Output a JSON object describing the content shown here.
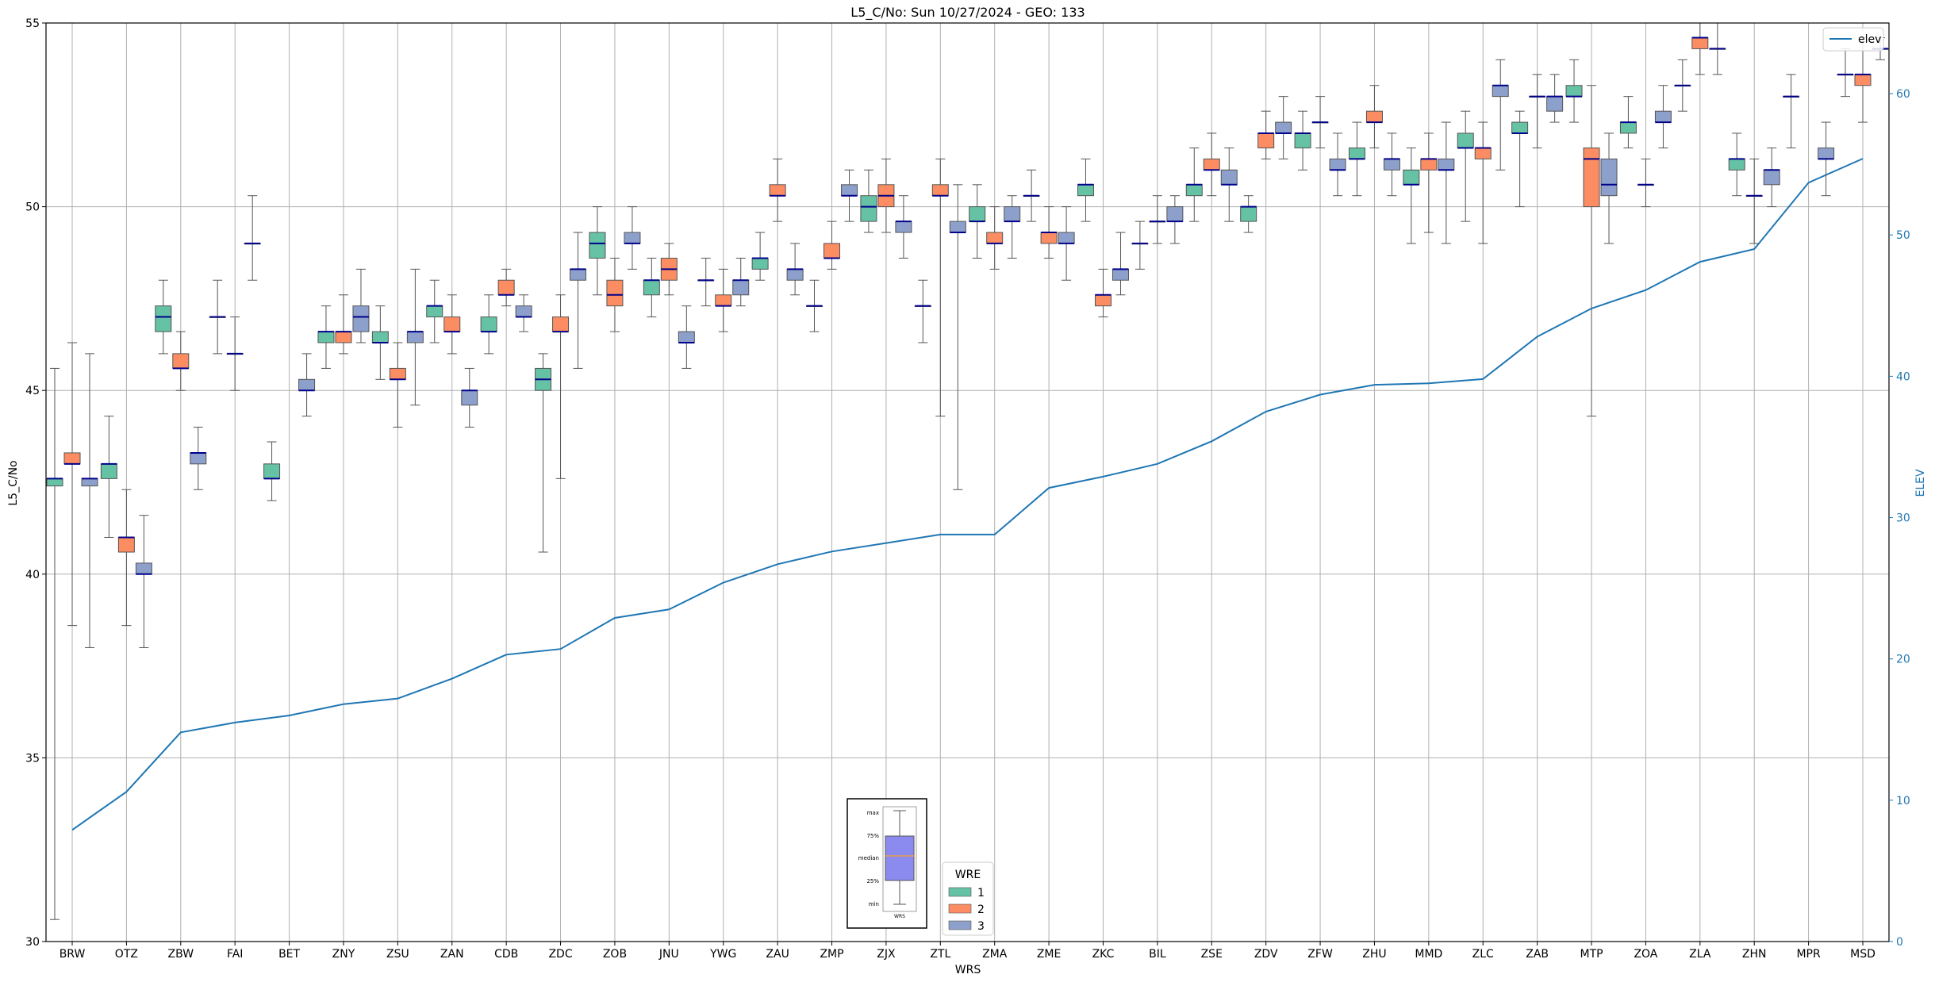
{
  "chart_data": {
    "type": "box",
    "title": "L5_C/No: Sun 10/27/2024 - GEO: 133",
    "xlabel": "WRS",
    "ylabel": "L5_C/No",
    "y2label": "ELEV",
    "ylim": [
      30,
      55
    ],
    "y2lim": [
      0,
      65
    ],
    "yticks": [
      30,
      35,
      40,
      45,
      50,
      55
    ],
    "y2ticks": [
      0,
      10,
      20,
      30,
      40,
      50,
      60
    ],
    "grid": true,
    "categories": [
      "BRW",
      "OTZ",
      "ZBW",
      "FAI",
      "BET",
      "ZNY",
      "ZSU",
      "ZAN",
      "CDB",
      "ZDC",
      "ZOB",
      "JNU",
      "YWG",
      "ZAU",
      "ZMP",
      "ZJX",
      "ZTL",
      "ZMA",
      "ZME",
      "ZKC",
      "BIL",
      "ZSE",
      "ZDV",
      "ZFW",
      "ZHU",
      "MMD",
      "ZLC",
      "ZAB",
      "MTP",
      "ZOA",
      "ZLA",
      "ZHN",
      "MPR",
      "MSD"
    ],
    "colors": {
      "1": "#66c2a5",
      "2": "#fc8d62",
      "3": "#8da0cb",
      "median": "#00008b",
      "elev": "#1f77b4",
      "whisker": "#555555"
    },
    "box_legend": {
      "title": "WRE",
      "entries": [
        "1",
        "2",
        "3"
      ],
      "placement": "bottom-center"
    },
    "line_legend": {
      "entries": [
        "elev"
      ],
      "placement": "top-right"
    },
    "key_box": {
      "labels": [
        "max",
        "75%",
        "median",
        "25%",
        "min"
      ],
      "caption": "WRS"
    },
    "boxes": [
      {
        "cat": "BRW",
        "wre": 1,
        "min": 30.6,
        "q1": 42.4,
        "median": 42.6,
        "q3": 42.6,
        "max": 45.6
      },
      {
        "cat": "BRW",
        "wre": 2,
        "min": 38.6,
        "q1": 43.0,
        "median": 43.0,
        "q3": 43.3,
        "max": 46.3
      },
      {
        "cat": "BRW",
        "wre": 3,
        "min": 38.0,
        "q1": 42.4,
        "median": 42.6,
        "q3": 42.6,
        "max": 46.0
      },
      {
        "cat": "OTZ",
        "wre": 1,
        "min": 41.0,
        "q1": 42.6,
        "median": 43.0,
        "q3": 43.0,
        "max": 44.3
      },
      {
        "cat": "OTZ",
        "wre": 2,
        "min": 38.6,
        "q1": 40.6,
        "median": 41.0,
        "q3": 41.0,
        "max": 42.3
      },
      {
        "cat": "OTZ",
        "wre": 3,
        "min": 38.0,
        "q1": 40.0,
        "median": 40.0,
        "q3": 40.3,
        "max": 41.6
      },
      {
        "cat": "ZBW",
        "wre": 1,
        "min": 46.0,
        "q1": 46.6,
        "median": 47.0,
        "q3": 47.3,
        "max": 48.0
      },
      {
        "cat": "ZBW",
        "wre": 2,
        "min": 45.0,
        "q1": 45.6,
        "median": 45.6,
        "q3": 46.0,
        "max": 46.6
      },
      {
        "cat": "ZBW",
        "wre": 3,
        "min": 42.3,
        "q1": 43.0,
        "median": 43.3,
        "q3": 43.3,
        "max": 44.0
      },
      {
        "cat": "FAI",
        "wre": 1,
        "min": 46.0,
        "q1": 47.0,
        "median": 47.0,
        "q3": 47.0,
        "max": 48.0
      },
      {
        "cat": "FAI",
        "wre": 2,
        "min": 45.0,
        "q1": 46.0,
        "median": 46.0,
        "q3": 46.0,
        "max": 47.0
      },
      {
        "cat": "FAI",
        "wre": 3,
        "min": 48.0,
        "q1": 49.0,
        "median": 49.0,
        "q3": 49.0,
        "max": 50.3
      },
      {
        "cat": "BET",
        "wre": 1,
        "min": 42.0,
        "q1": 42.6,
        "median": 42.6,
        "q3": 43.0,
        "max": 43.6
      },
      {
        "cat": "BET",
        "wre": 3,
        "min": 44.3,
        "q1": 45.0,
        "median": 45.0,
        "q3": 45.3,
        "max": 46.0
      },
      {
        "cat": "ZNY",
        "wre": 1,
        "min": 45.6,
        "q1": 46.3,
        "median": 46.6,
        "q3": 46.6,
        "max": 47.3
      },
      {
        "cat": "ZNY",
        "wre": 2,
        "min": 46.0,
        "q1": 46.3,
        "median": 46.6,
        "q3": 46.6,
        "max": 47.6
      },
      {
        "cat": "ZNY",
        "wre": 3,
        "min": 46.3,
        "q1": 46.6,
        "median": 47.0,
        "q3": 47.3,
        "max": 48.3
      },
      {
        "cat": "ZSU",
        "wre": 1,
        "min": 45.3,
        "q1": 46.3,
        "median": 46.3,
        "q3": 46.6,
        "max": 47.3
      },
      {
        "cat": "ZSU",
        "wre": 2,
        "min": 44.0,
        "q1": 45.3,
        "median": 45.3,
        "q3": 45.6,
        "max": 46.3
      },
      {
        "cat": "ZSU",
        "wre": 3,
        "min": 44.6,
        "q1": 46.3,
        "median": 46.6,
        "q3": 46.6,
        "max": 48.3
      },
      {
        "cat": "ZAN",
        "wre": 1,
        "min": 46.3,
        "q1": 47.0,
        "median": 47.3,
        "q3": 47.3,
        "max": 48.0
      },
      {
        "cat": "ZAN",
        "wre": 2,
        "min": 46.0,
        "q1": 46.6,
        "median": 46.6,
        "q3": 47.0,
        "max": 47.6
      },
      {
        "cat": "ZAN",
        "wre": 3,
        "min": 44.0,
        "q1": 44.6,
        "median": 45.0,
        "q3": 45.0,
        "max": 45.6
      },
      {
        "cat": "CDB",
        "wre": 1,
        "min": 46.0,
        "q1": 46.6,
        "median": 46.6,
        "q3": 47.0,
        "max": 47.6
      },
      {
        "cat": "CDB",
        "wre": 2,
        "min": 47.3,
        "q1": 47.6,
        "median": 47.6,
        "q3": 48.0,
        "max": 48.3
      },
      {
        "cat": "CDB",
        "wre": 3,
        "min": 46.6,
        "q1": 47.0,
        "median": 47.0,
        "q3": 47.3,
        "max": 47.6
      },
      {
        "cat": "ZDC",
        "wre": 1,
        "min": 40.6,
        "q1": 45.0,
        "median": 45.3,
        "q3": 45.6,
        "max": 46.0
      },
      {
        "cat": "ZDC",
        "wre": 2,
        "min": 42.6,
        "q1": 46.6,
        "median": 46.6,
        "q3": 47.0,
        "max": 47.6
      },
      {
        "cat": "ZDC",
        "wre": 3,
        "min": 45.6,
        "q1": 48.0,
        "median": 48.3,
        "q3": 48.3,
        "max": 49.3
      },
      {
        "cat": "ZOB",
        "wre": 1,
        "min": 47.6,
        "q1": 48.6,
        "median": 49.0,
        "q3": 49.3,
        "max": 50.0
      },
      {
        "cat": "ZOB",
        "wre": 2,
        "min": 46.6,
        "q1": 47.3,
        "median": 47.6,
        "q3": 48.0,
        "max": 48.6
      },
      {
        "cat": "ZOB",
        "wre": 3,
        "min": 48.3,
        "q1": 49.0,
        "median": 49.0,
        "q3": 49.3,
        "max": 50.0
      },
      {
        "cat": "JNU",
        "wre": 1,
        "min": 47.0,
        "q1": 47.6,
        "median": 48.0,
        "q3": 48.0,
        "max": 48.6
      },
      {
        "cat": "JNU",
        "wre": 2,
        "min": 47.6,
        "q1": 48.0,
        "median": 48.3,
        "q3": 48.6,
        "max": 49.0
      },
      {
        "cat": "JNU",
        "wre": 3,
        "min": 45.6,
        "q1": 46.3,
        "median": 46.3,
        "q3": 46.6,
        "max": 47.3
      },
      {
        "cat": "YWG",
        "wre": 1,
        "min": 47.3,
        "q1": 48.0,
        "median": 48.0,
        "q3": 48.0,
        "max": 48.6
      },
      {
        "cat": "YWG",
        "wre": 2,
        "min": 46.6,
        "q1": 47.3,
        "median": 47.3,
        "q3": 47.6,
        "max": 48.3
      },
      {
        "cat": "YWG",
        "wre": 3,
        "min": 47.3,
        "q1": 47.6,
        "median": 48.0,
        "q3": 48.0,
        "max": 48.6
      },
      {
        "cat": "ZAU",
        "wre": 1,
        "min": 48.0,
        "q1": 48.3,
        "median": 48.6,
        "q3": 48.6,
        "max": 49.3
      },
      {
        "cat": "ZAU",
        "wre": 2,
        "min": 49.6,
        "q1": 50.3,
        "median": 50.3,
        "q3": 50.6,
        "max": 51.3
      },
      {
        "cat": "ZAU",
        "wre": 3,
        "min": 47.6,
        "q1": 48.0,
        "median": 48.3,
        "q3": 48.3,
        "max": 49.0
      },
      {
        "cat": "ZMP",
        "wre": 1,
        "min": 46.6,
        "q1": 47.3,
        "median": 47.3,
        "q3": 47.3,
        "max": 48.0
      },
      {
        "cat": "ZMP",
        "wre": 2,
        "min": 48.3,
        "q1": 48.6,
        "median": 48.6,
        "q3": 49.0,
        "max": 49.6
      },
      {
        "cat": "ZMP",
        "wre": 3,
        "min": 49.6,
        "q1": 50.3,
        "median": 50.3,
        "q3": 50.6,
        "max": 51.0
      },
      {
        "cat": "ZJX",
        "wre": 1,
        "min": 49.3,
        "q1": 49.6,
        "median": 50.0,
        "q3": 50.3,
        "max": 51.0
      },
      {
        "cat": "ZJX",
        "wre": 2,
        "min": 49.3,
        "q1": 50.0,
        "median": 50.3,
        "q3": 50.6,
        "max": 51.3
      },
      {
        "cat": "ZJX",
        "wre": 3,
        "min": 48.6,
        "q1": 49.3,
        "median": 49.6,
        "q3": 49.6,
        "max": 50.3
      },
      {
        "cat": "ZTL",
        "wre": 1,
        "min": 46.3,
        "q1": 47.3,
        "median": 47.3,
        "q3": 47.3,
        "max": 48.0
      },
      {
        "cat": "ZTL",
        "wre": 2,
        "min": 44.3,
        "q1": 50.3,
        "median": 50.3,
        "q3": 50.6,
        "max": 51.3
      },
      {
        "cat": "ZTL",
        "wre": 3,
        "min": 42.3,
        "q1": 49.3,
        "median": 49.3,
        "q3": 49.6,
        "max": 50.6
      },
      {
        "cat": "ZMA",
        "wre": 1,
        "min": 48.6,
        "q1": 49.6,
        "median": 49.6,
        "q3": 50.0,
        "max": 50.6
      },
      {
        "cat": "ZMA",
        "wre": 2,
        "min": 48.3,
        "q1": 49.0,
        "median": 49.0,
        "q3": 49.3,
        "max": 50.0
      },
      {
        "cat": "ZMA",
        "wre": 3,
        "min": 48.6,
        "q1": 49.6,
        "median": 49.6,
        "q3": 50.0,
        "max": 50.3
      },
      {
        "cat": "ZME",
        "wre": 1,
        "min": 49.6,
        "q1": 50.3,
        "median": 50.3,
        "q3": 50.3,
        "max": 51.0
      },
      {
        "cat": "ZME",
        "wre": 2,
        "min": 48.6,
        "q1": 49.0,
        "median": 49.3,
        "q3": 49.3,
        "max": 50.0
      },
      {
        "cat": "ZME",
        "wre": 3,
        "min": 48.0,
        "q1": 49.0,
        "median": 49.0,
        "q3": 49.3,
        "max": 50.0
      },
      {
        "cat": "ZKC",
        "wre": 1,
        "min": 49.6,
        "q1": 50.3,
        "median": 50.6,
        "q3": 50.6,
        "max": 51.3
      },
      {
        "cat": "ZKC",
        "wre": 2,
        "min": 47.0,
        "q1": 47.3,
        "median": 47.6,
        "q3": 47.6,
        "max": 48.3
      },
      {
        "cat": "ZKC",
        "wre": 3,
        "min": 47.6,
        "q1": 48.0,
        "median": 48.3,
        "q3": 48.3,
        "max": 49.3
      },
      {
        "cat": "BIL",
        "wre": 1,
        "min": 48.3,
        "q1": 49.0,
        "median": 49.0,
        "q3": 49.0,
        "max": 49.6
      },
      {
        "cat": "BIL",
        "wre": 2,
        "min": 49.0,
        "q1": 49.6,
        "median": 49.6,
        "q3": 49.6,
        "max": 50.3
      },
      {
        "cat": "BIL",
        "wre": 3,
        "min": 49.0,
        "q1": 49.6,
        "median": 49.6,
        "q3": 50.0,
        "max": 50.3
      },
      {
        "cat": "ZSE",
        "wre": 1,
        "min": 49.6,
        "q1": 50.3,
        "median": 50.6,
        "q3": 50.6,
        "max": 51.6
      },
      {
        "cat": "ZSE",
        "wre": 2,
        "min": 50.3,
        "q1": 51.0,
        "median": 51.0,
        "q3": 51.3,
        "max": 52.0
      },
      {
        "cat": "ZSE",
        "wre": 3,
        "min": 49.6,
        "q1": 50.6,
        "median": 50.6,
        "q3": 51.0,
        "max": 51.6
      },
      {
        "cat": "ZDV",
        "wre": 1,
        "min": 49.3,
        "q1": 49.6,
        "median": 50.0,
        "q3": 50.0,
        "max": 50.3
      },
      {
        "cat": "ZDV",
        "wre": 2,
        "min": 51.3,
        "q1": 51.6,
        "median": 52.0,
        "q3": 52.0,
        "max": 52.6
      },
      {
        "cat": "ZDV",
        "wre": 3,
        "min": 51.3,
        "q1": 52.0,
        "median": 52.0,
        "q3": 52.3,
        "max": 53.0
      },
      {
        "cat": "ZFW",
        "wre": 1,
        "min": 51.0,
        "q1": 51.6,
        "median": 52.0,
        "q3": 52.0,
        "max": 52.6
      },
      {
        "cat": "ZFW",
        "wre": 2,
        "min": 51.6,
        "q1": 52.3,
        "median": 52.3,
        "q3": 52.3,
        "max": 53.0
      },
      {
        "cat": "ZFW",
        "wre": 3,
        "min": 50.3,
        "q1": 51.0,
        "median": 51.0,
        "q3": 51.3,
        "max": 52.0
      },
      {
        "cat": "ZHU",
        "wre": 1,
        "min": 50.3,
        "q1": 51.3,
        "median": 51.3,
        "q3": 51.6,
        "max": 52.3
      },
      {
        "cat": "ZHU",
        "wre": 2,
        "min": 51.6,
        "q1": 52.3,
        "median": 52.3,
        "q3": 52.6,
        "max": 53.3
      },
      {
        "cat": "ZHU",
        "wre": 3,
        "min": 50.3,
        "q1": 51.0,
        "median": 51.3,
        "q3": 51.3,
        "max": 52.0
      },
      {
        "cat": "MMD",
        "wre": 1,
        "min": 49.0,
        "q1": 50.6,
        "median": 50.6,
        "q3": 51.0,
        "max": 51.6
      },
      {
        "cat": "MMD",
        "wre": 2,
        "min": 49.3,
        "q1": 51.0,
        "median": 51.3,
        "q3": 51.3,
        "max": 52.0
      },
      {
        "cat": "MMD",
        "wre": 3,
        "min": 49.0,
        "q1": 51.0,
        "median": 51.0,
        "q3": 51.3,
        "max": 52.3
      },
      {
        "cat": "ZLC",
        "wre": 1,
        "min": 49.6,
        "q1": 51.6,
        "median": 51.6,
        "q3": 52.0,
        "max": 52.6
      },
      {
        "cat": "ZLC",
        "wre": 2,
        "min": 49.0,
        "q1": 51.3,
        "median": 51.6,
        "q3": 51.6,
        "max": 52.3
      },
      {
        "cat": "ZLC",
        "wre": 3,
        "min": 51.0,
        "q1": 53.0,
        "median": 53.3,
        "q3": 53.3,
        "max": 54.0
      },
      {
        "cat": "ZAB",
        "wre": 1,
        "min": 50.0,
        "q1": 52.0,
        "median": 52.0,
        "q3": 52.3,
        "max": 52.6
      },
      {
        "cat": "ZAB",
        "wre": 2,
        "min": 51.6,
        "q1": 53.0,
        "median": 53.0,
        "q3": 53.0,
        "max": 53.6
      },
      {
        "cat": "ZAB",
        "wre": 3,
        "min": 52.3,
        "q1": 52.6,
        "median": 53.0,
        "q3": 53.0,
        "max": 53.6
      },
      {
        "cat": "MTP",
        "wre": 1,
        "min": 52.3,
        "q1": 53.0,
        "median": 53.0,
        "q3": 53.3,
        "max": 54.0
      },
      {
        "cat": "MTP",
        "wre": 2,
        "min": 44.3,
        "q1": 50.0,
        "median": 51.3,
        "q3": 51.6,
        "max": 53.3
      },
      {
        "cat": "MTP",
        "wre": 3,
        "min": 49.0,
        "q1": 50.3,
        "median": 50.6,
        "q3": 51.3,
        "max": 52.0
      },
      {
        "cat": "ZOA",
        "wre": 1,
        "min": 51.6,
        "q1": 52.0,
        "median": 52.3,
        "q3": 52.3,
        "max": 53.0
      },
      {
        "cat": "ZOA",
        "wre": 2,
        "min": 50.0,
        "q1": 50.6,
        "median": 50.6,
        "q3": 50.6,
        "max": 51.3
      },
      {
        "cat": "ZOA",
        "wre": 3,
        "min": 51.6,
        "q1": 52.3,
        "median": 52.3,
        "q3": 52.6,
        "max": 53.3
      },
      {
        "cat": "ZLA",
        "wre": 1,
        "min": 52.6,
        "q1": 53.3,
        "median": 53.3,
        "q3": 53.3,
        "max": 54.0
      },
      {
        "cat": "ZLA",
        "wre": 2,
        "min": 53.6,
        "q1": 54.3,
        "median": 54.6,
        "q3": 54.6,
        "max": 55.0
      },
      {
        "cat": "ZLA",
        "wre": 3,
        "min": 53.6,
        "q1": 54.3,
        "median": 54.3,
        "q3": 54.3,
        "max": 55.0
      },
      {
        "cat": "ZHN",
        "wre": 1,
        "min": 50.3,
        "q1": 51.0,
        "median": 51.3,
        "q3": 51.3,
        "max": 52.0
      },
      {
        "cat": "ZHN",
        "wre": 2,
        "min": 49.0,
        "q1": 50.3,
        "median": 50.3,
        "q3": 50.3,
        "max": 51.3
      },
      {
        "cat": "ZHN",
        "wre": 3,
        "min": 50.0,
        "q1": 50.6,
        "median": 51.0,
        "q3": 51.0,
        "max": 51.6
      },
      {
        "cat": "MPR",
        "wre": 1,
        "min": 51.6,
        "q1": 53.0,
        "median": 53.0,
        "q3": 53.0,
        "max": 53.6
      },
      {
        "cat": "MPR",
        "wre": 3,
        "min": 50.3,
        "q1": 51.3,
        "median": 51.3,
        "q3": 51.6,
        "max": 52.3
      },
      {
        "cat": "MSD",
        "wre": 1,
        "min": 53.0,
        "q1": 53.6,
        "median": 53.6,
        "q3": 53.6,
        "max": 54.3
      },
      {
        "cat": "MSD",
        "wre": 2,
        "min": 52.3,
        "q1": 53.3,
        "median": 53.6,
        "q3": 53.6,
        "max": 54.6
      },
      {
        "cat": "MSD",
        "wre": 3,
        "min": 54.0,
        "q1": 54.3,
        "median": 54.3,
        "q3": 54.3,
        "max": 54.6
      }
    ],
    "elev": [
      7.9,
      10.6,
      14.8,
      15.5,
      16.0,
      16.8,
      17.2,
      18.6,
      20.3,
      20.7,
      22.9,
      23.5,
      25.4,
      26.7,
      27.6,
      28.2,
      28.8,
      28.8,
      32.1,
      32.9,
      33.8,
      35.4,
      37.5,
      38.7,
      39.4,
      39.5,
      39.8,
      42.8,
      44.8,
      46.1,
      48.1,
      49.0,
      53.7,
      55.4
    ]
  }
}
